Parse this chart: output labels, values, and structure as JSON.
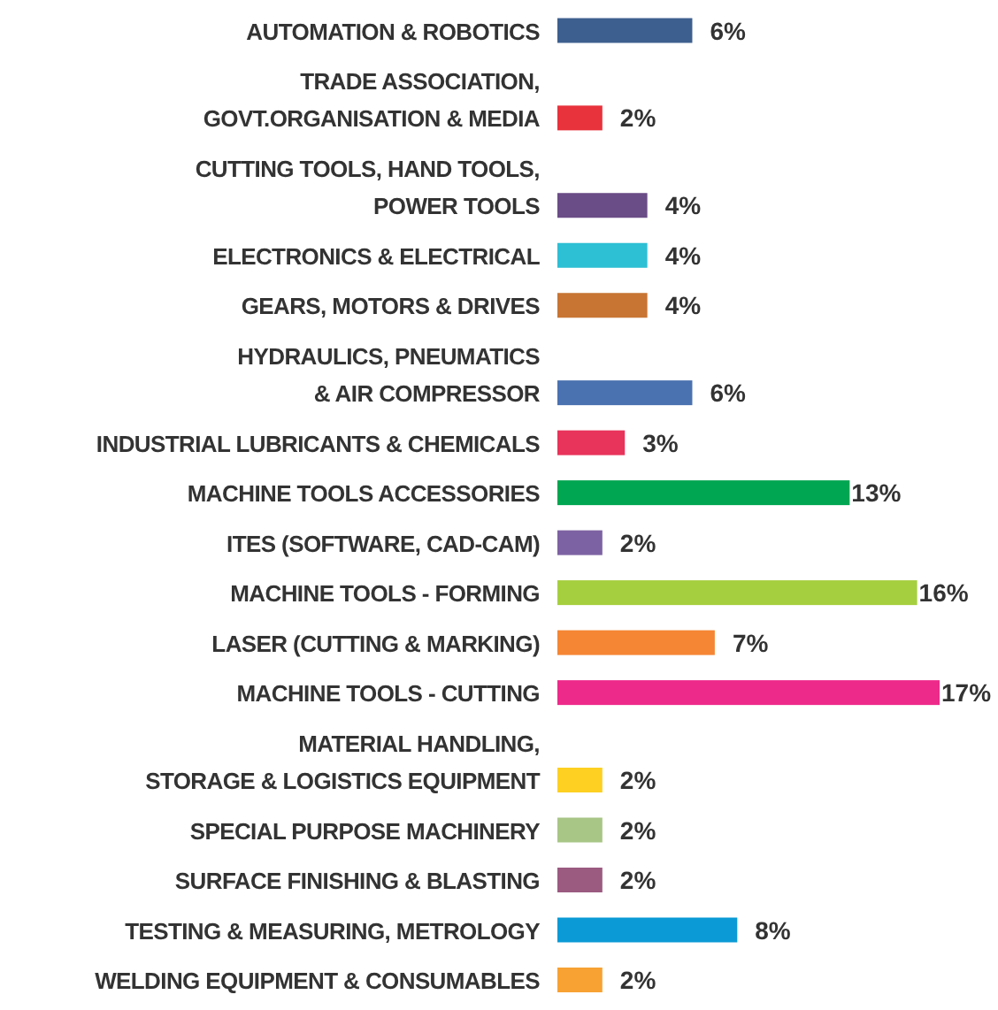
{
  "chart_data": {
    "type": "bar",
    "orientation": "horizontal",
    "categories": [
      "AUTOMATION & ROBOTICS",
      "TRADE ASSOCIATION,\nGOVT.ORGANISATION  & MEDIA",
      "CUTTING TOOLS, HAND TOOLS,\nPOWER TOOLS",
      "ELECTRONICS & ELECTRICAL",
      "GEARS, MOTORS & DRIVES",
      "HYDRAULICS, PNEUMATICS\n& AIR COMPRESSOR",
      "INDUSTRIAL LUBRICANTS & CHEMICALS",
      "MACHINE TOOLS ACCESSORIES",
      "ITES (SOFTWARE, CAD-CAM)",
      "MACHINE TOOLS - FORMING",
      "LASER (CUTTING & MARKING)",
      "MACHINE TOOLS - CUTTING",
      "MATERIAL HANDLING,\nSTORAGE & LOGISTICS EQUIPMENT",
      "SPECIAL PURPOSE MACHINERY",
      "SURFACE FINISHING & BLASTING",
      "TESTING & MEASURING, METROLOGY",
      "WELDING EQUIPMENT & CONSUMABLES"
    ],
    "values": [
      6,
      2,
      4,
      4,
      4,
      6,
      3,
      13,
      2,
      16,
      7,
      17,
      2,
      2,
      2,
      8,
      2
    ],
    "value_labels": [
      "6%",
      "2%",
      "4%",
      "4%",
      "4%",
      "6%",
      "3%",
      "13%",
      "2%",
      "16%",
      "7%",
      "17%",
      "2%",
      "2%",
      "2%",
      "8%",
      "2%"
    ],
    "colors": [
      "#3d5f8f",
      "#e8323c",
      "#6a4c86",
      "#2dbfd4",
      "#c87533",
      "#4a72b0",
      "#e8335a",
      "#00a651",
      "#7d62a3",
      "#a6cf3f",
      "#f58634",
      "#ed2a8a",
      "#fdd022",
      "#a8c686",
      "#9b5a80",
      "#0b9ad6",
      "#f7a233"
    ]
  }
}
